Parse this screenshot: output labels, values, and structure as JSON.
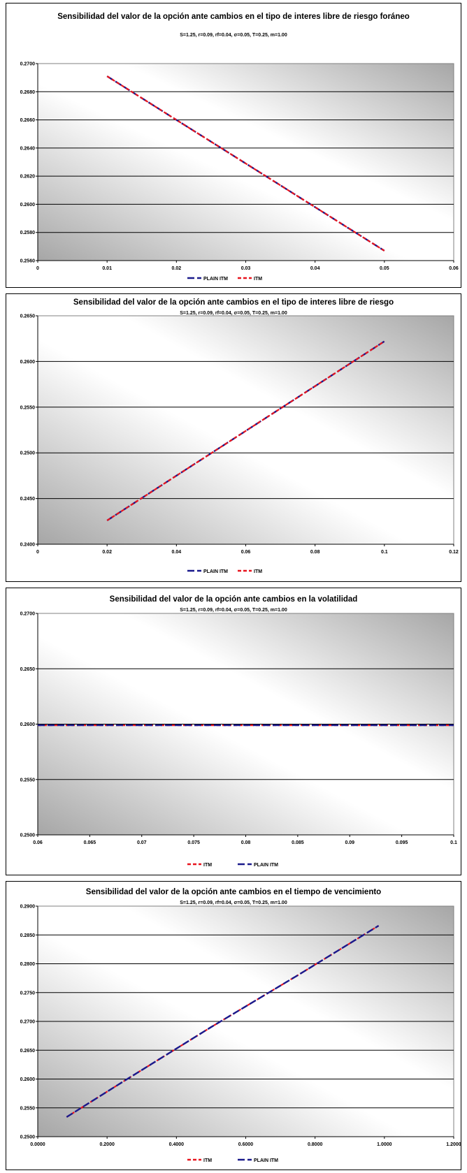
{
  "chart_data": [
    {
      "type": "line",
      "title": "Sensibilidad del valor de la opción ante cambios en el tipo de interes libre de riesgo foráneo",
      "subtitle": "S=1.25, r=0.09, rf=0.04, σ=0.05, T=0.25, m=1.00",
      "xlim": [
        0,
        0.06
      ],
      "ylim": [
        0.256,
        0.27
      ],
      "x_ticks": [
        "0",
        "0.01",
        "0.02",
        "0.03",
        "0.04",
        "0.05",
        "0.06"
      ],
      "y_ticks": [
        "0.2560",
        "0.2580",
        "0.2600",
        "0.2620",
        "0.2640",
        "0.2660",
        "0.2680",
        "0.2700"
      ],
      "grid": "horizontal",
      "legend_position": "bottom",
      "series": [
        {
          "name": "PLAIN ITM",
          "color": "#1a1a8c",
          "dash": "long-dash",
          "x": [
            0.01,
            0.02,
            0.03,
            0.04,
            0.05
          ],
          "y": [
            0.2691,
            0.266,
            0.2629,
            0.2598,
            0.2567
          ]
        },
        {
          "name": "ITM",
          "color": "#e8141e",
          "dash": "short-dash",
          "x": [
            0.01,
            0.02,
            0.03,
            0.04,
            0.05
          ],
          "y": [
            0.2691,
            0.266,
            0.2629,
            0.2598,
            0.2567
          ]
        }
      ]
    },
    {
      "type": "line",
      "title": "Sensibilidad del valor de la opción ante cambios en el tipo de interes libre de riesgo",
      "subtitle": "S=1.25, r=0.09, rf=0.04, σ=0.05, T=0.25, m=1.00",
      "xlim": [
        0,
        0.12
      ],
      "ylim": [
        0.24,
        0.265
      ],
      "x_ticks": [
        "0",
        "0.02",
        "0.04",
        "0.06",
        "0.08",
        "0.1",
        "0.12"
      ],
      "y_ticks": [
        "0.2400",
        "0.2450",
        "0.2500",
        "0.2550",
        "0.2600",
        "0.2650"
      ],
      "grid": "horizontal",
      "legend_position": "bottom",
      "series": [
        {
          "name": "PLAIN ITM",
          "color": "#1a1a8c",
          "dash": "long-dash",
          "x": [
            0.02,
            0.04,
            0.06,
            0.08,
            0.1
          ],
          "y": [
            0.2426,
            0.2475,
            0.2524,
            0.2573,
            0.2622
          ]
        },
        {
          "name": "ITM",
          "color": "#e8141e",
          "dash": "short-dash",
          "x": [
            0.02,
            0.04,
            0.06,
            0.08,
            0.1
          ],
          "y": [
            0.2426,
            0.2475,
            0.2524,
            0.2573,
            0.2622
          ]
        }
      ]
    },
    {
      "type": "line",
      "title": "Sensibilidad del valor de la opción ante cambios en la volatilidad",
      "subtitle": "S=1.25, r=0.09, rf=0.04, σ=0.05, T=0.25, m=1.00",
      "xlim": [
        0.06,
        0.1
      ],
      "ylim": [
        0.25,
        0.27
      ],
      "x_ticks": [
        "0.06",
        "0.065",
        "0.07",
        "0.075",
        "0.08",
        "0.085",
        "0.09",
        "0.095",
        "0.1"
      ],
      "y_ticks": [
        "0.2500",
        "0.2550",
        "0.2600",
        "0.2650",
        "0.2700"
      ],
      "grid": "horizontal",
      "legend_position": "bottom",
      "series": [
        {
          "name": "ITM",
          "color": "#e8141e",
          "dash": "short-dash",
          "x": [
            0.06,
            0.07,
            0.08,
            0.09,
            0.1
          ],
          "y": [
            0.2599,
            0.2599,
            0.2599,
            0.2599,
            0.2599
          ]
        },
        {
          "name": "PLAIN ITM",
          "color": "#1a1a8c",
          "dash": "long-dash",
          "x": [
            0.06,
            0.07,
            0.08,
            0.09,
            0.1
          ],
          "y": [
            0.2599,
            0.2599,
            0.2599,
            0.2599,
            0.2599
          ]
        }
      ]
    },
    {
      "type": "line",
      "title": "Sensibilidad del valor de la opción ante cambios en el tiempo de vencimiento",
      "subtitle": "S=1.25, r=0.09, rf=0.04, σ=0.05, T=0.25, m=1.00",
      "xlim": [
        0,
        1.2
      ],
      "ylim": [
        0.25,
        0.29
      ],
      "x_ticks": [
        "0.0000",
        "0.2000",
        "0.4000",
        "0.6000",
        "0.8000",
        "1.0000",
        "1.2000"
      ],
      "y_ticks": [
        "0.2500",
        "0.2550",
        "0.2600",
        "0.2650",
        "0.2700",
        "0.2750",
        "0.2800",
        "0.2850",
        "0.2900"
      ],
      "grid": "horizontal",
      "legend_position": "bottom",
      "series": [
        {
          "name": "ITM",
          "color": "#e8141e",
          "dash": "short-dash",
          "x": [
            0.0833,
            0.25,
            0.5,
            0.75,
            0.9833
          ],
          "y": [
            0.2534,
            0.2597,
            0.269,
            0.278,
            0.2866
          ]
        },
        {
          "name": "PLAIN ITM",
          "color": "#1a1a8c",
          "dash": "long-dash",
          "x": [
            0.0833,
            0.25,
            0.5,
            0.75,
            0.9833
          ],
          "y": [
            0.2534,
            0.2597,
            0.269,
            0.278,
            0.2866
          ]
        }
      ]
    }
  ]
}
